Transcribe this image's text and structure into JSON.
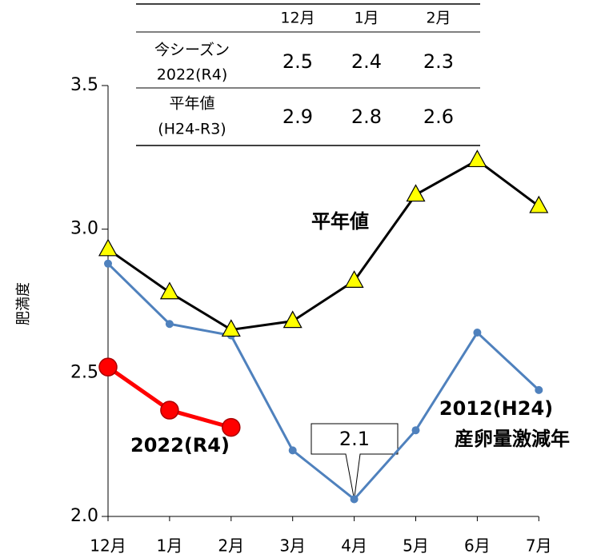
{
  "chart_data": {
    "type": "line",
    "y_label": "肥満度",
    "categories": [
      "12月",
      "1月",
      "2月",
      "3月",
      "4月",
      "5月",
      "6月",
      "7月"
    ],
    "ylim": [
      2.0,
      3.5
    ],
    "yticks": [
      {
        "value": 2,
        "label": "2.0"
      },
      2.5,
      {
        "value": 3,
        "label": "3.0"
      },
      3.5
    ],
    "series": [
      {
        "name": "平年値",
        "color": "#000000",
        "marker": "triangle",
        "marker_color": "#ffff00",
        "values": [
          2.93,
          2.78,
          2.65,
          2.68,
          2.82,
          3.12,
          3.24,
          3.08
        ]
      },
      {
        "name": "2012(H24)",
        "note": "産卵量激減年",
        "color": "#4f81bd",
        "marker": "dot",
        "marker_color": "#4f81bd",
        "values": [
          2.88,
          2.67,
          2.63,
          2.23,
          2.06,
          2.3,
          2.64,
          2.44
        ]
      },
      {
        "name": "2022(R4)",
        "color": "#ff0000",
        "marker": "circle",
        "marker_color": "#ff0000",
        "values": [
          2.52,
          2.37,
          2.31,
          null,
          null,
          null,
          null,
          null
        ]
      }
    ],
    "annotations": [
      {
        "text": "2.1",
        "series": 1,
        "index": 4
      }
    ]
  },
  "table": {
    "columns": [
      "12月",
      "1月",
      "2月"
    ],
    "rows": [
      {
        "label": [
          "今シーズン",
          "2022(R4)"
        ],
        "values": [
          2.5,
          2.4,
          2.3
        ]
      },
      {
        "label": [
          "平年値",
          "(H24-R3)"
        ],
        "values": [
          2.9,
          2.8,
          2.6
        ]
      }
    ]
  }
}
